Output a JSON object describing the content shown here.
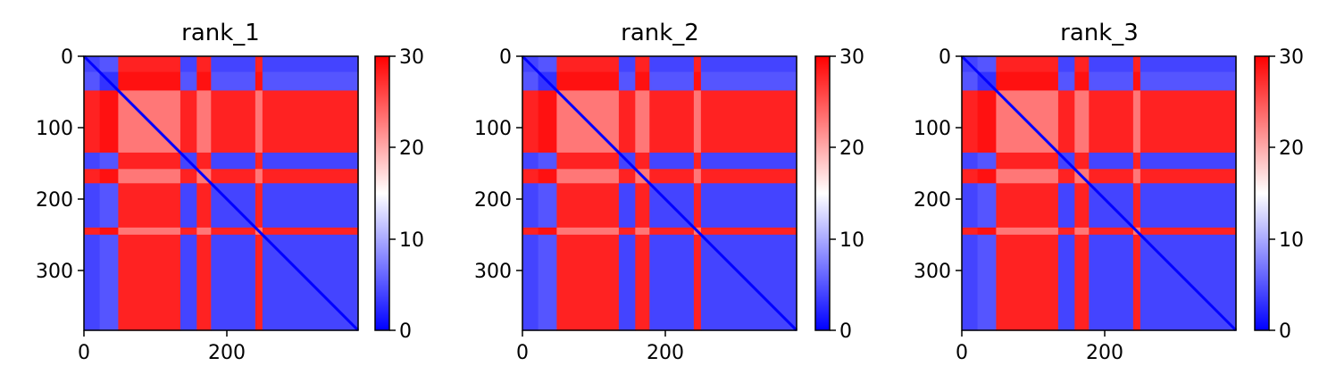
{
  "chart_data": [
    {
      "type": "heatmap",
      "title": "rank_1",
      "xlim": [
        0,
        384
      ],
      "ylim": [
        384,
        0
      ],
      "x_ticks": [
        0,
        200
      ],
      "x_tick_labels": [
        "0",
        "200"
      ],
      "y_ticks": [
        0,
        100,
        200,
        300
      ],
      "y_tick_labels": [
        "0",
        "100",
        "200",
        "300"
      ],
      "colorbar": {
        "min": 0,
        "max": 30,
        "ticks": [
          0,
          10,
          20,
          30
        ],
        "tick_labels": [
          "0",
          "10",
          "20",
          "30"
        ],
        "colormap": "bwr"
      },
      "segments": [
        {
          "start": 0,
          "end": 22,
          "type": "A"
        },
        {
          "start": 22,
          "end": 48,
          "type": "B"
        },
        {
          "start": 48,
          "end": 135,
          "type": "C"
        },
        {
          "start": 135,
          "end": 158,
          "type": "A"
        },
        {
          "start": 158,
          "end": 178,
          "type": "C"
        },
        {
          "start": 178,
          "end": 240,
          "type": "A"
        },
        {
          "start": 240,
          "end": 250,
          "type": "C"
        },
        {
          "start": 250,
          "end": 384,
          "type": "A"
        }
      ]
    },
    {
      "type": "heatmap",
      "title": "rank_2",
      "xlim": [
        0,
        384
      ],
      "ylim": [
        384,
        0
      ],
      "x_ticks": [
        0,
        200
      ],
      "x_tick_labels": [
        "0",
        "200"
      ],
      "y_ticks": [
        0,
        100,
        200,
        300
      ],
      "y_tick_labels": [
        "0",
        "100",
        "200",
        "300"
      ],
      "colorbar": {
        "min": 0,
        "max": 30,
        "ticks": [
          0,
          10,
          20,
          30
        ],
        "tick_labels": [
          "0",
          "10",
          "20",
          "30"
        ],
        "colormap": "bwr"
      },
      "segments": [
        {
          "start": 0,
          "end": 22,
          "type": "A"
        },
        {
          "start": 22,
          "end": 48,
          "type": "B"
        },
        {
          "start": 48,
          "end": 135,
          "type": "C"
        },
        {
          "start": 135,
          "end": 158,
          "type": "A"
        },
        {
          "start": 158,
          "end": 178,
          "type": "C"
        },
        {
          "start": 178,
          "end": 240,
          "type": "A"
        },
        {
          "start": 240,
          "end": 250,
          "type": "C"
        },
        {
          "start": 250,
          "end": 384,
          "type": "A"
        }
      ]
    },
    {
      "type": "heatmap",
      "title": "rank_3",
      "xlim": [
        0,
        384
      ],
      "ylim": [
        384,
        0
      ],
      "x_ticks": [
        0,
        200
      ],
      "x_tick_labels": [
        "0",
        "200"
      ],
      "y_ticks": [
        0,
        100,
        200,
        300
      ],
      "y_tick_labels": [
        "0",
        "100",
        "200",
        "300"
      ],
      "colorbar": {
        "min": 0,
        "max": 30,
        "ticks": [
          0,
          10,
          20,
          30
        ],
        "tick_labels": [
          "0",
          "10",
          "20",
          "30"
        ],
        "colormap": "bwr"
      },
      "segments": [
        {
          "start": 0,
          "end": 22,
          "type": "A"
        },
        {
          "start": 22,
          "end": 48,
          "type": "B"
        },
        {
          "start": 48,
          "end": 135,
          "type": "C"
        },
        {
          "start": 135,
          "end": 158,
          "type": "A"
        },
        {
          "start": 158,
          "end": 178,
          "type": "C"
        },
        {
          "start": 178,
          "end": 240,
          "type": "A"
        },
        {
          "start": 240,
          "end": 250,
          "type": "C"
        },
        {
          "start": 250,
          "end": 384,
          "type": "A"
        }
      ]
    }
  ],
  "colors": {
    "low": "#0000ff",
    "mid": "#ffffff",
    "high": "#ff0000",
    "axes": "#000000"
  }
}
